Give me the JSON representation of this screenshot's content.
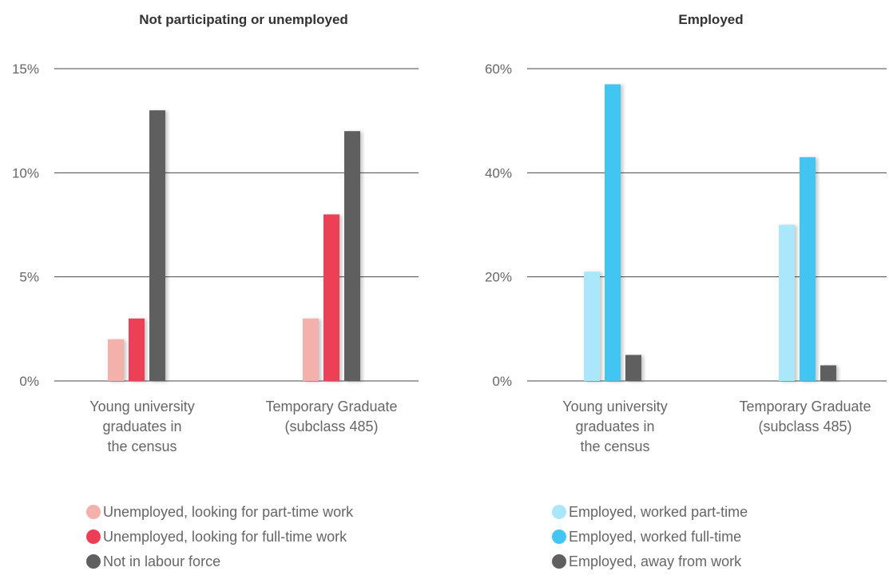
{
  "chart_data": [
    {
      "type": "bar",
      "title": "Not participating or unemployed",
      "ylim": [
        0,
        15
      ],
      "yticks": [
        0,
        5,
        10,
        15
      ],
      "ytick_labels": [
        "0%",
        "5%",
        "10%",
        "15%"
      ],
      "categories": [
        [
          "Young university",
          "graduates in",
          "the census"
        ],
        [
          "Temporary Graduate",
          "(subclass 485)"
        ]
      ],
      "series": [
        {
          "name": "Unemployed, looking for part-time work",
          "color": "#f4b1ab",
          "values": [
            2,
            3
          ]
        },
        {
          "name": "Unemployed, looking for full-time work",
          "color": "#ec3f57",
          "values": [
            3,
            8
          ]
        },
        {
          "name": "Not in labour force",
          "color": "#5f5f61",
          "values": [
            13,
            12
          ]
        }
      ],
      "grid": true,
      "legend_position": "bottom"
    },
    {
      "type": "bar",
      "title": "Employed",
      "ylim": [
        0,
        60
      ],
      "yticks": [
        0,
        20,
        40,
        60
      ],
      "ytick_labels": [
        "0%",
        "20%",
        "40%",
        "60%"
      ],
      "categories": [
        [
          "Young university",
          "graduates in",
          "the census"
        ],
        [
          "Temporary Graduate",
          "(subclass 485)"
        ]
      ],
      "series": [
        {
          "name": "Employed, worked part-time",
          "color": "#abe7fa",
          "values": [
            21,
            30
          ]
        },
        {
          "name": "Employed, worked full-time",
          "color": "#42c6f1",
          "values": [
            57,
            43
          ]
        },
        {
          "name": "Employed, away from work",
          "color": "#5f5f61",
          "values": [
            5,
            3
          ]
        }
      ],
      "grid": true,
      "legend_position": "bottom"
    }
  ]
}
